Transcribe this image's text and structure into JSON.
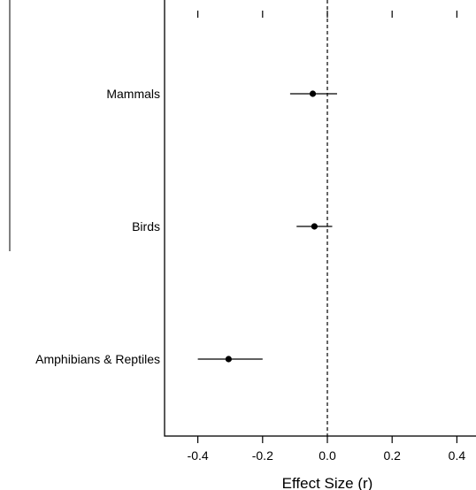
{
  "chart_data": {
    "type": "scatter",
    "subtype": "forest-plot",
    "title": "",
    "xlabel": "Effect Size (r)",
    "ylabel": "",
    "xlim": [
      -0.5,
      0.47
    ],
    "x_ticks": [
      "-0.4",
      "-0.2",
      "0.0",
      "0.2",
      "0.4"
    ],
    "x_tick_values": [
      -0.4,
      -0.2,
      0.0,
      0.2,
      0.4
    ],
    "reference_line": 0.0,
    "categories": [
      "Mammals",
      "Birds",
      "Amphibians & Reptiles"
    ],
    "estimates": [
      -0.045,
      -0.04,
      -0.305
    ],
    "ci_lower": [
      -0.115,
      -0.095,
      -0.4
    ],
    "ci_upper": [
      0.03,
      0.015,
      -0.2
    ],
    "grid": false,
    "legend": "none",
    "colors": {
      "point": "#000000",
      "line": "#000000",
      "axis": "#000000"
    }
  }
}
